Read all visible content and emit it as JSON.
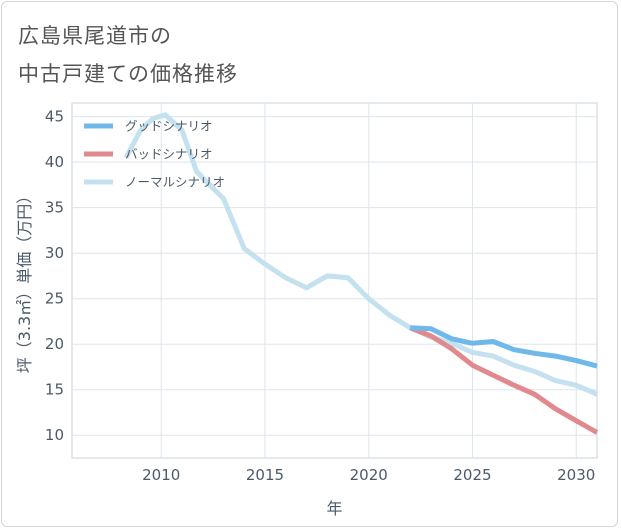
{
  "title_line1": "広島県尾道市の",
  "title_line2": "中古戸建ての価格推移",
  "chart_data": {
    "type": "line",
    "xlabel": "年",
    "ylabel": "坪（3.3㎡）単価（万円）",
    "xlim": [
      2005.7,
      2031
    ],
    "ylim": [
      7.5,
      46.5
    ],
    "xticks": [
      2010,
      2015,
      2020,
      2025,
      2030
    ],
    "yticks": [
      10,
      15,
      20,
      25,
      30,
      35,
      40,
      45
    ],
    "grid": true,
    "legend_position": "top-left",
    "series": [
      {
        "name": "グッドシナリオ",
        "color": "#6fb8ea",
        "x": [
          2022,
          2023,
          2024,
          2025,
          2026,
          2027,
          2028,
          2029,
          2030,
          2031
        ],
        "y": [
          21.8,
          21.7,
          20.6,
          20.1,
          20.3,
          19.4,
          19.0,
          18.7,
          18.2,
          17.6
        ]
      },
      {
        "name": "バッドシナリオ",
        "color": "#e08a8e",
        "x": [
          2022,
          2023,
          2024,
          2025,
          2026,
          2027,
          2028,
          2029,
          2030,
          2031
        ],
        "y": [
          21.8,
          20.9,
          19.5,
          17.7,
          16.6,
          15.5,
          14.5,
          12.9,
          11.6,
          10.3
        ]
      },
      {
        "name": "ノーマルシナリオ",
        "color": "#c4e1ef",
        "x": [
          2008.3,
          2009,
          2009.6,
          2010.2,
          2011,
          2011.7,
          2012.2,
          2013,
          2014,
          2015,
          2016,
          2017,
          2018,
          2019,
          2020,
          2021,
          2022,
          2023,
          2024,
          2025,
          2026,
          2027,
          2028,
          2029,
          2030,
          2031
        ],
        "y": [
          40.5,
          43.5,
          44.8,
          45.2,
          43.5,
          39.0,
          37.8,
          36.0,
          30.5,
          28.8,
          27.3,
          26.2,
          27.5,
          27.3,
          25.0,
          23.2,
          21.8,
          20.8,
          20.1,
          19.1,
          18.7,
          17.7,
          17.0,
          16.0,
          15.5,
          14.5
        ]
      }
    ]
  }
}
